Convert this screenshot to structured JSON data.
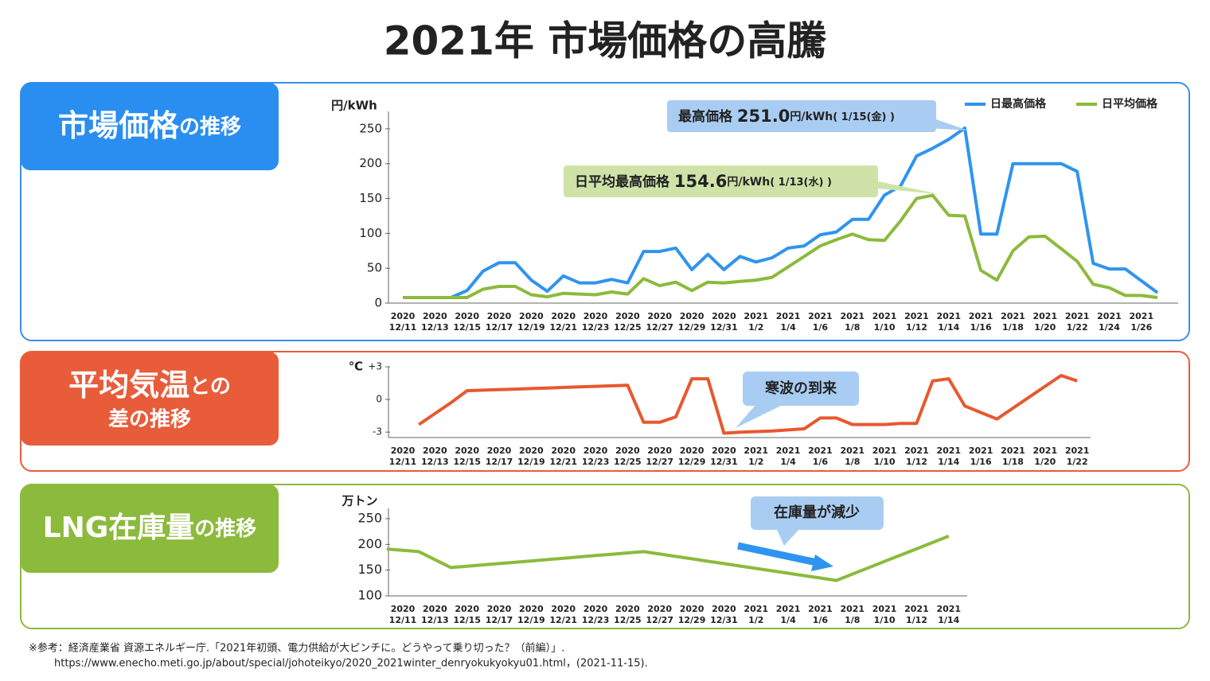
{
  "title": "2021年 市場価格の高騰",
  "panels": [
    {
      "label": [
        "市場価格",
        "の推移"
      ]
    },
    {
      "label": [
        "平均気温",
        "との",
        "差の推移"
      ]
    },
    {
      "label": [
        "LNG在庫量",
        "の推移"
      ]
    }
  ],
  "chart_data": [
    {
      "type": "line",
      "y_unit": "円/kWh",
      "categories": [
        "2020\n12/11",
        null,
        "2020\n12/13",
        null,
        "2020\n12/15",
        null,
        "2020\n12/17",
        null,
        "2020\n12/19",
        null,
        "2020\n12/21",
        null,
        "2020\n12/23",
        null,
        "2020\n12/25",
        null,
        "2020\n12/27",
        null,
        "2020\n12/29",
        null,
        "2020\n12/31",
        null,
        "2021\n1/2",
        null,
        "2021\n1/4",
        null,
        "2021\n1/6",
        null,
        "2021\n1/8",
        null,
        "2021\n1/10",
        null,
        "2021\n1/12",
        null,
        "2021\n1/14",
        null,
        "2021\n1/16",
        null,
        "2021\n1/18",
        null,
        "2021\n1/20",
        null,
        "2021\n1/22",
        null,
        "2021\n1/24",
        null,
        "2021\n1/26",
        null
      ],
      "series": [
        {
          "name": "日最高価格",
          "color": "#2f94ee",
          "values": [
            8,
            8,
            8,
            8,
            18,
            46,
            58,
            58,
            33,
            17,
            39,
            29,
            29,
            34,
            29,
            74,
            74,
            79,
            48,
            70,
            48,
            67,
            59,
            65,
            79,
            82,
            98,
            102,
            120,
            120,
            155,
            168,
            211,
            222,
            235,
            251,
            99,
            99,
            200,
            200,
            200,
            200,
            189,
            57,
            49,
            49,
            32,
            15
          ]
        },
        {
          "name": "日平均価格",
          "color": "#8cba3c",
          "values": [
            8,
            8,
            8,
            8,
            8,
            20,
            24,
            24,
            12,
            9,
            14,
            13,
            12,
            16,
            13,
            35,
            25,
            30,
            18,
            30,
            29,
            31,
            33,
            37,
            52,
            67,
            82,
            91,
            99,
            91,
            90,
            118,
            150,
            154.6,
            126,
            125,
            47,
            33,
            75,
            95,
            96,
            78,
            60,
            27,
            22,
            11,
            11,
            8
          ]
        }
      ],
      "ylim": [
        0,
        275
      ],
      "yticks": [
        0,
        50,
        100,
        150,
        200,
        250
      ],
      "grid": false,
      "legend": "top-right",
      "annotations": [
        [
          "最高価格 ",
          "251.0",
          "円/kWh",
          "( 1/15(金) )"
        ],
        [
          "日平均最高価格 ",
          "154.6",
          "円/kWh",
          "( 1/13(水) )"
        ]
      ]
    },
    {
      "type": "line",
      "y_unit": "℃",
      "categories": [
        "2020\n12/11",
        null,
        "2020\n12/13",
        null,
        "2020\n12/15",
        null,
        "2020\n12/17",
        null,
        "2020\n12/19",
        null,
        "2020\n12/21",
        null,
        "2020\n12/23",
        null,
        "2020\n12/25",
        null,
        "2020\n12/27",
        null,
        "2020\n12/29",
        null,
        "2020\n12/31",
        null,
        "2021\n1/2",
        null,
        "2021\n1/4",
        null,
        "2021\n1/6",
        null,
        "2021\n1/8",
        null,
        "2021\n1/10",
        null,
        "2021\n1/12",
        null,
        "2021\n1/14",
        null,
        "2021\n1/16",
        null,
        "2021\n1/18",
        null,
        "2021\n1/20",
        null,
        "2021\n1/22"
      ],
      "series": [
        {
          "color": "#e8582f",
          "values": [
            null,
            -2.3,
            -1.3,
            -0.3,
            0.8,
            0.85,
            0.9,
            0.95,
            1.0,
            1.05,
            1.1,
            1.15,
            1.2,
            1.25,
            1.3,
            -2.1,
            -2.1,
            -1.6,
            1.9,
            1.9,
            -3.1,
            -3.0,
            -2.95,
            -2.9,
            -2.8,
            -2.7,
            -1.7,
            -1.7,
            -2.3,
            -2.3,
            -2.3,
            -2.2,
            -2.2,
            1.7,
            1.9,
            -0.6,
            -1.2,
            -1.8,
            -0.8,
            0.2,
            1.2,
            2.2,
            1.7
          ]
        }
      ],
      "ylim": [
        -3.5,
        3
      ],
      "yticks": [
        {
          "value": 3,
          "label": "+3"
        },
        0,
        -3
      ],
      "grid": false,
      "annotations": [
        [
          "寒波の到来"
        ]
      ]
    },
    {
      "type": "line",
      "y_unit": "万トン",
      "categories": [
        null,
        "2020\n12/11",
        null,
        "2020\n12/13",
        null,
        "2020\n12/15",
        null,
        "2020\n12/17",
        null,
        "2020\n12/19",
        null,
        "2020\n12/21",
        null,
        "2020\n12/23",
        null,
        "2020\n12/25",
        null,
        "2020\n12/27",
        null,
        "2020\n12/29",
        null,
        "2020\n12/31",
        null,
        "2021\n1/2",
        null,
        "2021\n1/4",
        null,
        "2021\n1/6",
        null,
        "2021\n1/8",
        null,
        "2021\n1/10",
        null,
        "2021\n1/12",
        null,
        "2021\n1/14"
      ],
      "series": [
        {
          "color": "#8cba3c",
          "values": [
            191,
            188.5,
            186,
            170.5,
            155,
            157.6,
            160.2,
            162.8,
            165.3,
            167.9,
            170.5,
            173.1,
            175.7,
            178.3,
            180.8,
            183.4,
            186,
            181.3,
            176.7,
            172,
            167.3,
            162.7,
            158,
            153.3,
            148.7,
            144,
            139.3,
            134.7,
            130,
            142.3,
            154.6,
            166.9,
            179.1,
            191.4,
            203.7,
            216
          ]
        }
      ],
      "ylim": [
        100,
        270
      ],
      "yticks": [
        100,
        150,
        200,
        250
      ],
      "grid": false,
      "annotations": [
        [
          "在庫量が減少"
        ]
      ]
    }
  ],
  "footnote": [
    "※参考：経済産業省 資源エネルギー庁.「2021年初頭、電力供給が大ピンチに。どうやって乗り切った？（前編）」.",
    "https://www.enecho.meti.go.jp/about/special/johoteikyo/2020_2021winter_denryokukyokyu01.html，(2021-11-15)."
  ]
}
